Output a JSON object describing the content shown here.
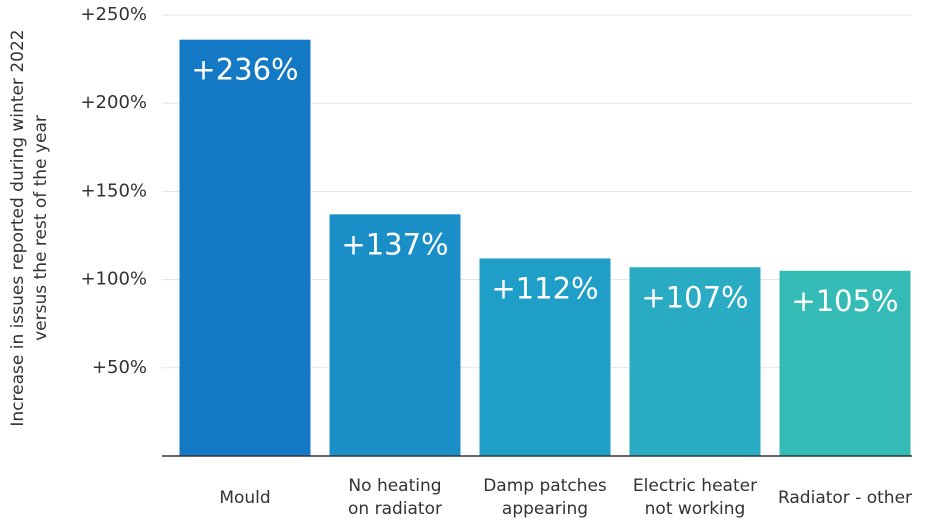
{
  "chart_data": {
    "type": "bar",
    "y_label": "Increase in issues reported during winter 2022\nversus the rest of the year",
    "categories": [
      "Mould",
      "No heating\non radiator",
      "Damp patches\nappearing",
      "Electric heater\nnot working",
      "Radiator - other"
    ],
    "values": [
      236,
      137,
      112,
      107,
      105
    ],
    "value_labels": [
      "+236%",
      "+137%",
      "+112%",
      "+107%",
      "+105%"
    ],
    "colors": [
      "#1479c4",
      "#1a8fc7",
      "#1f9ec8",
      "#29acc3",
      "#35bbb5"
    ],
    "ylim": [
      0,
      250
    ],
    "yticks": [
      {
        "value": 50,
        "label": "+50%"
      },
      {
        "value": 100,
        "label": "+100%"
      },
      {
        "value": 150,
        "label": "+150%"
      },
      {
        "value": 200,
        "label": "+200%"
      },
      {
        "value": 250,
        "label": "+250%"
      }
    ],
    "grid": true
  }
}
